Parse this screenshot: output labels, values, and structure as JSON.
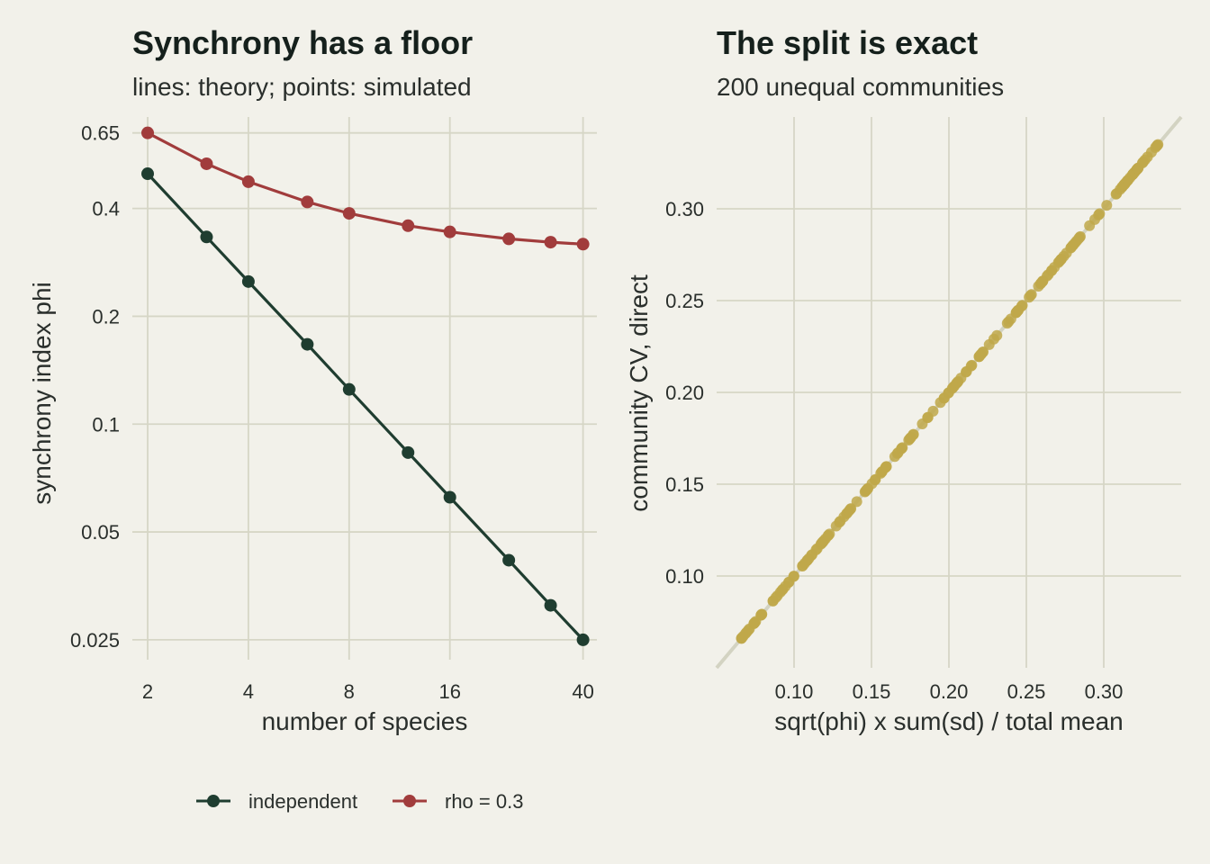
{
  "chart_data": [
    {
      "type": "line",
      "title": "Synchrony has a floor",
      "subtitle": "lines: theory; points: simulated",
      "xlabel": "number of species",
      "ylabel": "synchrony index phi",
      "x_scale": "log",
      "y_scale": "log",
      "xlim": [
        1.8,
        44
      ],
      "ylim": [
        0.022,
        0.72
      ],
      "x_ticks": [
        2,
        4,
        8,
        16,
        40
      ],
      "x_tick_labels": [
        "2",
        "4",
        "8",
        "16",
        "40"
      ],
      "y_ticks": [
        0.025,
        0.05,
        0.1,
        0.2,
        0.4,
        0.65
      ],
      "y_tick_labels": [
        "0.025",
        "0.05",
        "0.1",
        "0.2",
        "0.4",
        "0.65"
      ],
      "grid": true,
      "legend_position": "bottom",
      "x": [
        2,
        3,
        4,
        6,
        8,
        12,
        16,
        24,
        32,
        40
      ],
      "series": [
        {
          "name": "independent",
          "color": "#1f3d30",
          "values": [
            0.5,
            0.333,
            0.25,
            0.167,
            0.125,
            0.0833,
            0.0625,
            0.0417,
            0.0312,
            0.025
          ]
        },
        {
          "name": "rho = 0.3",
          "color": "#a13c3c",
          "values": [
            0.65,
            0.533,
            0.475,
            0.417,
            0.3875,
            0.358,
            0.344,
            0.329,
            0.322,
            0.318
          ]
        }
      ]
    },
    {
      "type": "scatter",
      "title": "The split is exact",
      "subtitle": "200 unequal communities",
      "xlabel": "sqrt(phi) x sum(sd) / total mean",
      "ylabel": "community CV, direct",
      "xlim": [
        0.05,
        0.35
      ],
      "ylim": [
        0.05,
        0.35
      ],
      "x_ticks": [
        0.1,
        0.15,
        0.2,
        0.25,
        0.3
      ],
      "x_tick_labels": [
        "0.10",
        "0.15",
        "0.20",
        "0.25",
        "0.30"
      ],
      "y_ticks": [
        0.1,
        0.15,
        0.2,
        0.25,
        0.3
      ],
      "y_tick_labels": [
        "0.10",
        "0.15",
        "0.20",
        "0.25",
        "0.30"
      ],
      "grid": true,
      "identity_line": true,
      "point_color": "#bfa84a",
      "line_color": "#d3d3c2",
      "n_points": 200,
      "values_min": 0.066,
      "values_max": 0.335
    }
  ]
}
